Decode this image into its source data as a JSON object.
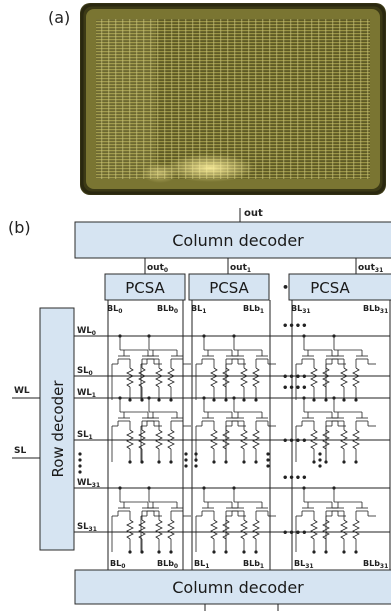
{
  "panel_a": {
    "label": "(a)"
  },
  "panel_b": {
    "label": "(b)"
  },
  "blocks": {
    "column_decoder_top": "Column decoder",
    "column_decoder_bottom": "Column decoder",
    "row_decoder": "Row decoder",
    "pcsa": [
      "PCSA",
      "PCSA",
      "PCSA"
    ]
  },
  "outputs": {
    "main": "out",
    "sub": [
      {
        "base": "out",
        "sub": "0"
      },
      {
        "base": "out",
        "sub": "1"
      },
      {
        "base": "out",
        "sub": "31"
      }
    ]
  },
  "bitlines": [
    {
      "bl": "BL",
      "blb": "BLb",
      "sub": "0"
    },
    {
      "bl": "BL",
      "blb": "BLb",
      "sub": "1"
    },
    {
      "bl": "BL",
      "blb": "BLb",
      "sub": "31"
    }
  ],
  "rows": [
    {
      "wl": "WL",
      "sl": "SL",
      "sub": "0"
    },
    {
      "wl": "WL",
      "sl": "SL",
      "sub": "1"
    },
    {
      "wl": "WL",
      "sl": "SL",
      "sub": "31"
    }
  ],
  "external": {
    "wl": "WL",
    "sl": "SL"
  },
  "ellipsis": "••••"
}
